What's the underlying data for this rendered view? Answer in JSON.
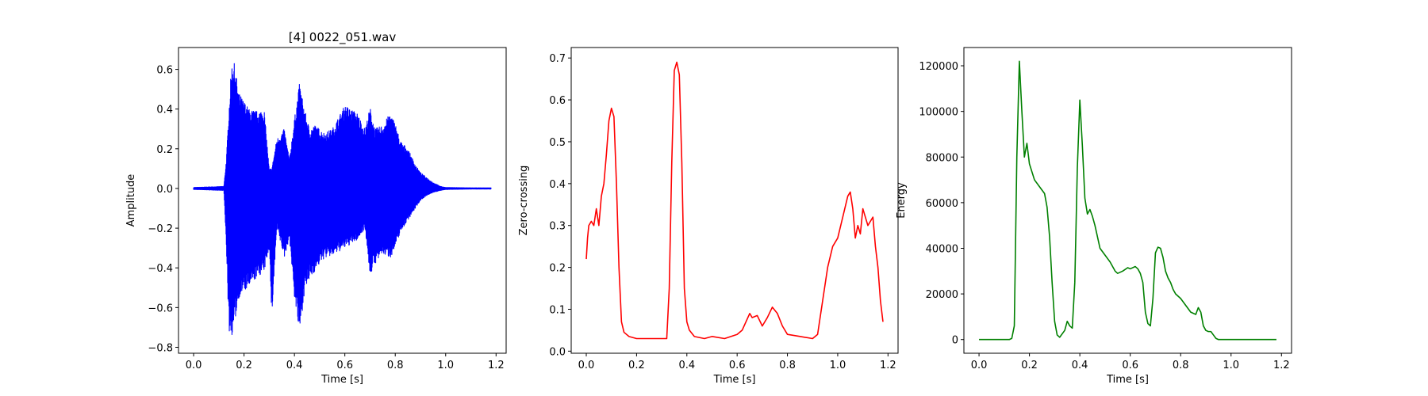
{
  "chart_data": [
    {
      "type": "line",
      "title": "[4] 0022_051.wav",
      "xlabel": "Time [s]",
      "ylabel": "Amplitude",
      "xlim": [
        -0.06,
        1.24
      ],
      "ylim": [
        -0.83,
        0.71
      ],
      "xticks": [
        0.0,
        0.2,
        0.4,
        0.6,
        0.8,
        1.0,
        1.2
      ],
      "xtick_labels": [
        "0.0",
        "0.2",
        "0.4",
        "0.6",
        "0.8",
        "1.0",
        "1.2"
      ],
      "yticks": [
        -0.8,
        -0.6,
        -0.4,
        -0.2,
        0.0,
        0.2,
        0.4,
        0.6
      ],
      "ytick_labels": [
        "−0.8",
        "−0.6",
        "−0.4",
        "−0.2",
        "0.0",
        "0.2",
        "0.4",
        "0.6"
      ],
      "color": "#0000ff",
      "series": [
        {
          "x": [
            0.0,
            0.12,
            0.13,
            0.14,
            0.15,
            0.16,
            0.18,
            0.2,
            0.22,
            0.25,
            0.28,
            0.3,
            0.31,
            0.33,
            0.36,
            0.38,
            0.4,
            0.42,
            0.44,
            0.46,
            0.48,
            0.5,
            0.52,
            0.55,
            0.6,
            0.65,
            0.68,
            0.7,
            0.72,
            0.75,
            0.78,
            0.8,
            0.82,
            0.85,
            0.88,
            0.9,
            0.92,
            0.95,
            0.98,
            1.0,
            1.1,
            1.18
          ],
          "upper": [
            0.005,
            0.01,
            0.15,
            0.4,
            0.62,
            0.64,
            0.48,
            0.44,
            0.4,
            0.39,
            0.4,
            0.1,
            0.1,
            0.25,
            0.3,
            0.15,
            0.35,
            0.53,
            0.4,
            0.3,
            0.32,
            0.3,
            0.28,
            0.3,
            0.42,
            0.38,
            0.3,
            0.41,
            0.3,
            0.32,
            0.38,
            0.33,
            0.24,
            0.2,
            0.12,
            0.08,
            0.06,
            0.03,
            0.01,
            0.005,
            0.003,
            0.003
          ],
          "lower": [
            -0.005,
            -0.01,
            -0.3,
            -0.72,
            -0.75,
            -0.7,
            -0.55,
            -0.52,
            -0.5,
            -0.45,
            -0.42,
            -0.3,
            -0.66,
            -0.2,
            -0.35,
            -0.25,
            -0.55,
            -0.74,
            -0.52,
            -0.46,
            -0.42,
            -0.38,
            -0.35,
            -0.34,
            -0.3,
            -0.26,
            -0.2,
            -0.44,
            -0.38,
            -0.33,
            -0.35,
            -0.3,
            -0.22,
            -0.16,
            -0.1,
            -0.06,
            -0.04,
            -0.02,
            -0.01,
            -0.005,
            -0.003,
            -0.003
          ]
        }
      ]
    },
    {
      "type": "line",
      "title": "",
      "xlabel": "Time [s]",
      "ylabel": "Zero-crossing",
      "xlim": [
        -0.06,
        1.24
      ],
      "ylim": [
        -0.005,
        0.725
      ],
      "xticks": [
        0.0,
        0.2,
        0.4,
        0.6,
        0.8,
        1.0,
        1.2
      ],
      "xtick_labels": [
        "0.0",
        "0.2",
        "0.4",
        "0.6",
        "0.8",
        "1.0",
        "1.2"
      ],
      "yticks": [
        0.0,
        0.1,
        0.2,
        0.3,
        0.4,
        0.5,
        0.6,
        0.7
      ],
      "ytick_labels": [
        "0.0",
        "0.1",
        "0.2",
        "0.3",
        "0.4",
        "0.5",
        "0.6",
        "0.7"
      ],
      "color": "#ff0000",
      "series": [
        {
          "x": [
            0.0,
            0.005,
            0.01,
            0.02,
            0.03,
            0.04,
            0.05,
            0.06,
            0.07,
            0.08,
            0.09,
            0.1,
            0.11,
            0.12,
            0.13,
            0.14,
            0.15,
            0.17,
            0.2,
            0.25,
            0.3,
            0.32,
            0.33,
            0.34,
            0.35,
            0.36,
            0.37,
            0.38,
            0.39,
            0.4,
            0.41,
            0.43,
            0.47,
            0.5,
            0.55,
            0.6,
            0.62,
            0.65,
            0.66,
            0.68,
            0.7,
            0.72,
            0.74,
            0.76,
            0.78,
            0.8,
            0.85,
            0.9,
            0.92,
            0.94,
            0.96,
            0.98,
            1.0,
            1.02,
            1.04,
            1.05,
            1.06,
            1.07,
            1.08,
            1.09,
            1.1,
            1.12,
            1.14,
            1.15,
            1.16,
            1.17,
            1.18
          ],
          "y": [
            0.22,
            0.27,
            0.3,
            0.31,
            0.3,
            0.34,
            0.3,
            0.37,
            0.4,
            0.47,
            0.55,
            0.58,
            0.56,
            0.4,
            0.2,
            0.07,
            0.045,
            0.035,
            0.03,
            0.03,
            0.03,
            0.03,
            0.15,
            0.45,
            0.67,
            0.69,
            0.66,
            0.45,
            0.15,
            0.07,
            0.05,
            0.035,
            0.03,
            0.035,
            0.03,
            0.04,
            0.05,
            0.09,
            0.08,
            0.085,
            0.06,
            0.08,
            0.105,
            0.09,
            0.06,
            0.04,
            0.035,
            0.03,
            0.04,
            0.12,
            0.2,
            0.25,
            0.27,
            0.32,
            0.37,
            0.38,
            0.34,
            0.27,
            0.3,
            0.28,
            0.34,
            0.3,
            0.32,
            0.25,
            0.2,
            0.12,
            0.07
          ]
        }
      ]
    },
    {
      "type": "line",
      "title": "",
      "xlabel": "Time [s]",
      "ylabel": "Energy",
      "xlim": [
        -0.06,
        1.24
      ],
      "ylim": [
        -6000,
        128000
      ],
      "xticks": [
        0.0,
        0.2,
        0.4,
        0.6,
        0.8,
        1.0,
        1.2
      ],
      "xtick_labels": [
        "0.0",
        "0.2",
        "0.4",
        "0.6",
        "0.8",
        "1.0",
        "1.2"
      ],
      "yticks": [
        0,
        20000,
        40000,
        60000,
        80000,
        100000,
        120000
      ],
      "ytick_labels": [
        "0",
        "20000",
        "40000",
        "60000",
        "80000",
        "100000",
        "120000"
      ],
      "color": "#008000",
      "series": [
        {
          "x": [
            0.0,
            0.12,
            0.13,
            0.14,
            0.15,
            0.16,
            0.17,
            0.18,
            0.19,
            0.2,
            0.22,
            0.24,
            0.26,
            0.27,
            0.28,
            0.29,
            0.3,
            0.31,
            0.32,
            0.34,
            0.35,
            0.36,
            0.37,
            0.38,
            0.39,
            0.4,
            0.41,
            0.42,
            0.43,
            0.44,
            0.45,
            0.46,
            0.47,
            0.48,
            0.5,
            0.52,
            0.54,
            0.55,
            0.57,
            0.59,
            0.6,
            0.62,
            0.63,
            0.64,
            0.65,
            0.66,
            0.67,
            0.68,
            0.69,
            0.7,
            0.71,
            0.72,
            0.73,
            0.74,
            0.75,
            0.76,
            0.77,
            0.78,
            0.8,
            0.82,
            0.84,
            0.86,
            0.87,
            0.88,
            0.89,
            0.9,
            0.91,
            0.92,
            0.93,
            0.94,
            0.95,
            0.96,
            1.0,
            1.18
          ],
          "y": [
            0,
            0,
            500,
            6000,
            80000,
            122000,
            100000,
            80000,
            86000,
            77000,
            70000,
            67000,
            64000,
            58000,
            45000,
            25000,
            8000,
            2000,
            1000,
            4000,
            8000,
            6000,
            5000,
            25000,
            75000,
            105000,
            85000,
            62000,
            55000,
            57000,
            54000,
            50000,
            45000,
            40000,
            37000,
            34000,
            30000,
            29000,
            30000,
            31500,
            31000,
            32000,
            31000,
            29000,
            25000,
            12000,
            7000,
            6000,
            18000,
            38000,
            40500,
            40000,
            36000,
            30000,
            27000,
            25000,
            22000,
            20000,
            18000,
            15000,
            12000,
            11000,
            14000,
            12000,
            6000,
            4000,
            3500,
            3500,
            2000,
            500,
            0,
            0,
            0,
            0
          ]
        }
      ]
    }
  ]
}
